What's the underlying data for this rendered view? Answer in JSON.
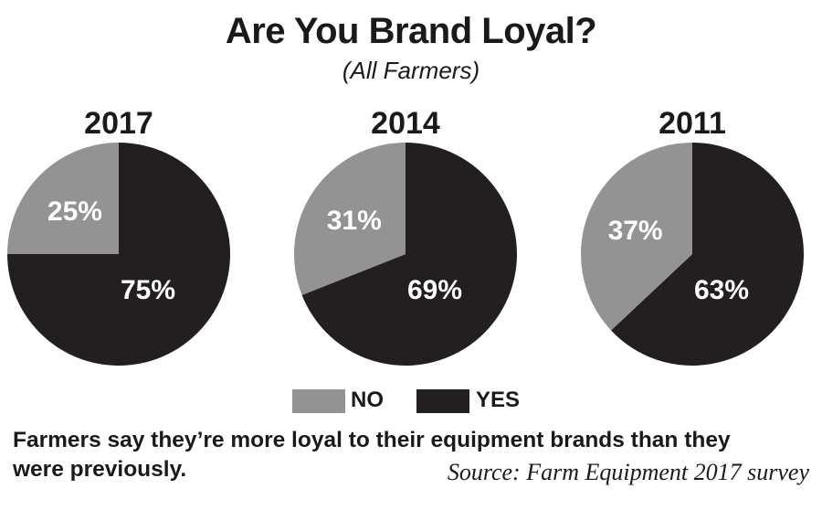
{
  "title": "Are You Brand Loyal?",
  "subtitle": "(All Farmers)",
  "colors": {
    "no": "#939393",
    "yes": "#231f20",
    "label": "#ffffff"
  },
  "chart_data": [
    {
      "type": "pie",
      "title": "2017",
      "slices": [
        {
          "name": "NO",
          "value": 25,
          "label": "25%"
        },
        {
          "name": "YES",
          "value": 75,
          "label": "75%"
        }
      ]
    },
    {
      "type": "pie",
      "title": "2014",
      "slices": [
        {
          "name": "NO",
          "value": 31,
          "label": "31%"
        },
        {
          "name": "YES",
          "value": 69,
          "label": "69%"
        }
      ]
    },
    {
      "type": "pie",
      "title": "2011",
      "slices": [
        {
          "name": "NO",
          "value": 37,
          "label": "37%"
        },
        {
          "name": "YES",
          "value": 63,
          "label": "63%"
        }
      ]
    }
  ],
  "legend": {
    "no_label": "NO",
    "yes_label": "YES"
  },
  "caption_line1": "Farmers say they’re more loyal to their equipment brands than they",
  "caption_line2": "were previously.",
  "source": "Source: Farm Equipment 2017 survey"
}
